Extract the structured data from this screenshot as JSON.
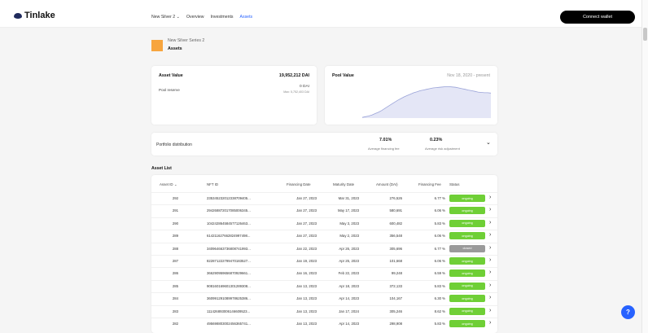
{
  "app": {
    "logo": "Tinlake"
  },
  "nav": {
    "pool": "New Silver 2",
    "overview": "Overview",
    "investments": "Investments",
    "assets": "Assets"
  },
  "connect": "Connect wallet",
  "pool_header": {
    "name": "New Silver Series 2",
    "section": "Assets"
  },
  "asset_value": {
    "label": "Asset Value",
    "value": "19,952,212 DAI",
    "reserve_label": "Pool reserve",
    "reserve_value": "0 DAI",
    "reserve_max": "Max: 5,752,403 DAI"
  },
  "pool_value": {
    "label": "Pool Value",
    "range": "Nov 18, 2020 - present"
  },
  "distribution": {
    "label": "Portfolio distribution",
    "fee_value": "7.01%",
    "fee_label": "Average financing fee",
    "risk_value": "0.23%",
    "risk_label": "Average risk adjustment"
  },
  "asset_list": {
    "title": "Asset List",
    "headers": {
      "id": "Asset ID",
      "nft": "NFT ID",
      "fin_date": "Financing Date",
      "mat_date": "Maturity Date",
      "amount": "Amount (DAI)",
      "fee": "Financing Fee",
      "status": "Status"
    },
    "rows": [
      {
        "id": "292",
        "nft": "235345232012338709405...",
        "fin": "Jan 27, 2023",
        "mat": "Mar 31, 2023",
        "amt": "276,526",
        "fee": "6.77 %",
        "status": "ongoing"
      },
      {
        "id": "291",
        "nft": "294268872017085006345...",
        "fin": "Jan 27, 2023",
        "mat": "May 17, 2023",
        "amt": "580,691",
        "fee": "6.06 %",
        "status": "ongoing"
      },
      {
        "id": "290",
        "nft": "104242864584577126463...",
        "fin": "Jan 27, 2023",
        "mat": "May 3, 2023",
        "amt": "600,482",
        "fee": "5.83 %",
        "status": "ongoing"
      },
      {
        "id": "289",
        "nft": "614211627662824997498...",
        "fin": "Jan 27, 2023",
        "mat": "May 2, 2023",
        "amt": "356,548",
        "fee": "6.06 %",
        "status": "ongoing"
      },
      {
        "id": "288",
        "nft": "340964663736808741993...",
        "fin": "Jan 22, 2023",
        "mat": "Apr 26, 2023",
        "amt": "305,696",
        "fee": "6.77 %",
        "status": "closed"
      },
      {
        "id": "287",
        "nft": "822871222799470183527...",
        "fin": "Jan 19, 2023",
        "mat": "Apr 25, 2023",
        "amt": "101,668",
        "fee": "6.06 %",
        "status": "ongoing"
      },
      {
        "id": "286",
        "nft": "366290959656870929661...",
        "fin": "Jan 16, 2023",
        "mat": "Feb 22, 2023",
        "amt": "99,248",
        "fee": "6.59 %",
        "status": "ongoing"
      },
      {
        "id": "285",
        "nft": "908160169601301289308...",
        "fin": "Jan 13, 2023",
        "mat": "Apr 18, 2023",
        "amt": "372,133",
        "fee": "5.83 %",
        "status": "ongoing"
      },
      {
        "id": "284",
        "nft": "360991291089978625386...",
        "fin": "Jan 13, 2023",
        "mat": "Apr 14, 2023",
        "amt": "104,167",
        "fee": "6.30 %",
        "status": "ongoing"
      },
      {
        "id": "283",
        "nft": "111426893006146609523...",
        "fin": "Jan 13, 2023",
        "mat": "Jan 17, 2024",
        "amt": "305,246",
        "fee": "8.62 %",
        "status": "ongoing"
      },
      {
        "id": "282",
        "nft": "495698803002456365741...",
        "fin": "Jan 13, 2023",
        "mat": "Apr 14, 2023",
        "amt": "298,908",
        "fee": "5.83 %",
        "status": "ongoing"
      }
    ]
  },
  "help": "?",
  "icons": {
    "logo": "tinlake-logo-icon",
    "nav_dropdown": "chevron-down-icon",
    "sort": "chevron-down-icon",
    "row_action": "chevron-right-icon",
    "expand": "chevron-down-icon",
    "help": "help-icon"
  },
  "colors": {
    "ongoing": "#6fcf36",
    "closed": "#9a9a9a",
    "accent": "#2762ff",
    "chart_line": "#9aa3d8",
    "chart_fill": "#e4e6f6"
  },
  "chart_data": {
    "type": "area",
    "title": "Pool Value",
    "subtitle": "Nov 18, 2020 - present",
    "xlabel": "",
    "ylabel": "",
    "grid": false,
    "x": [
      0,
      1,
      2,
      3,
      4,
      5,
      6,
      7,
      8,
      9,
      10,
      11,
      12,
      13,
      14,
      15,
      16,
      17,
      18,
      19,
      20,
      21,
      22,
      23,
      24,
      25,
      26,
      27,
      28,
      29,
      30,
      31,
      32,
      33,
      34,
      35,
      36,
      37,
      38,
      39,
      40
    ],
    "values": [
      2,
      4,
      6,
      9,
      13,
      17,
      22,
      28,
      34,
      40,
      46,
      52,
      57,
      62,
      66,
      70,
      74,
      77,
      80,
      82,
      84,
      86,
      88,
      89,
      90,
      91,
      92,
      92,
      91,
      90,
      88,
      86,
      84,
      82,
      80,
      78,
      76,
      75,
      74,
      74,
      73
    ],
    "ylim": [
      0,
      100
    ]
  }
}
